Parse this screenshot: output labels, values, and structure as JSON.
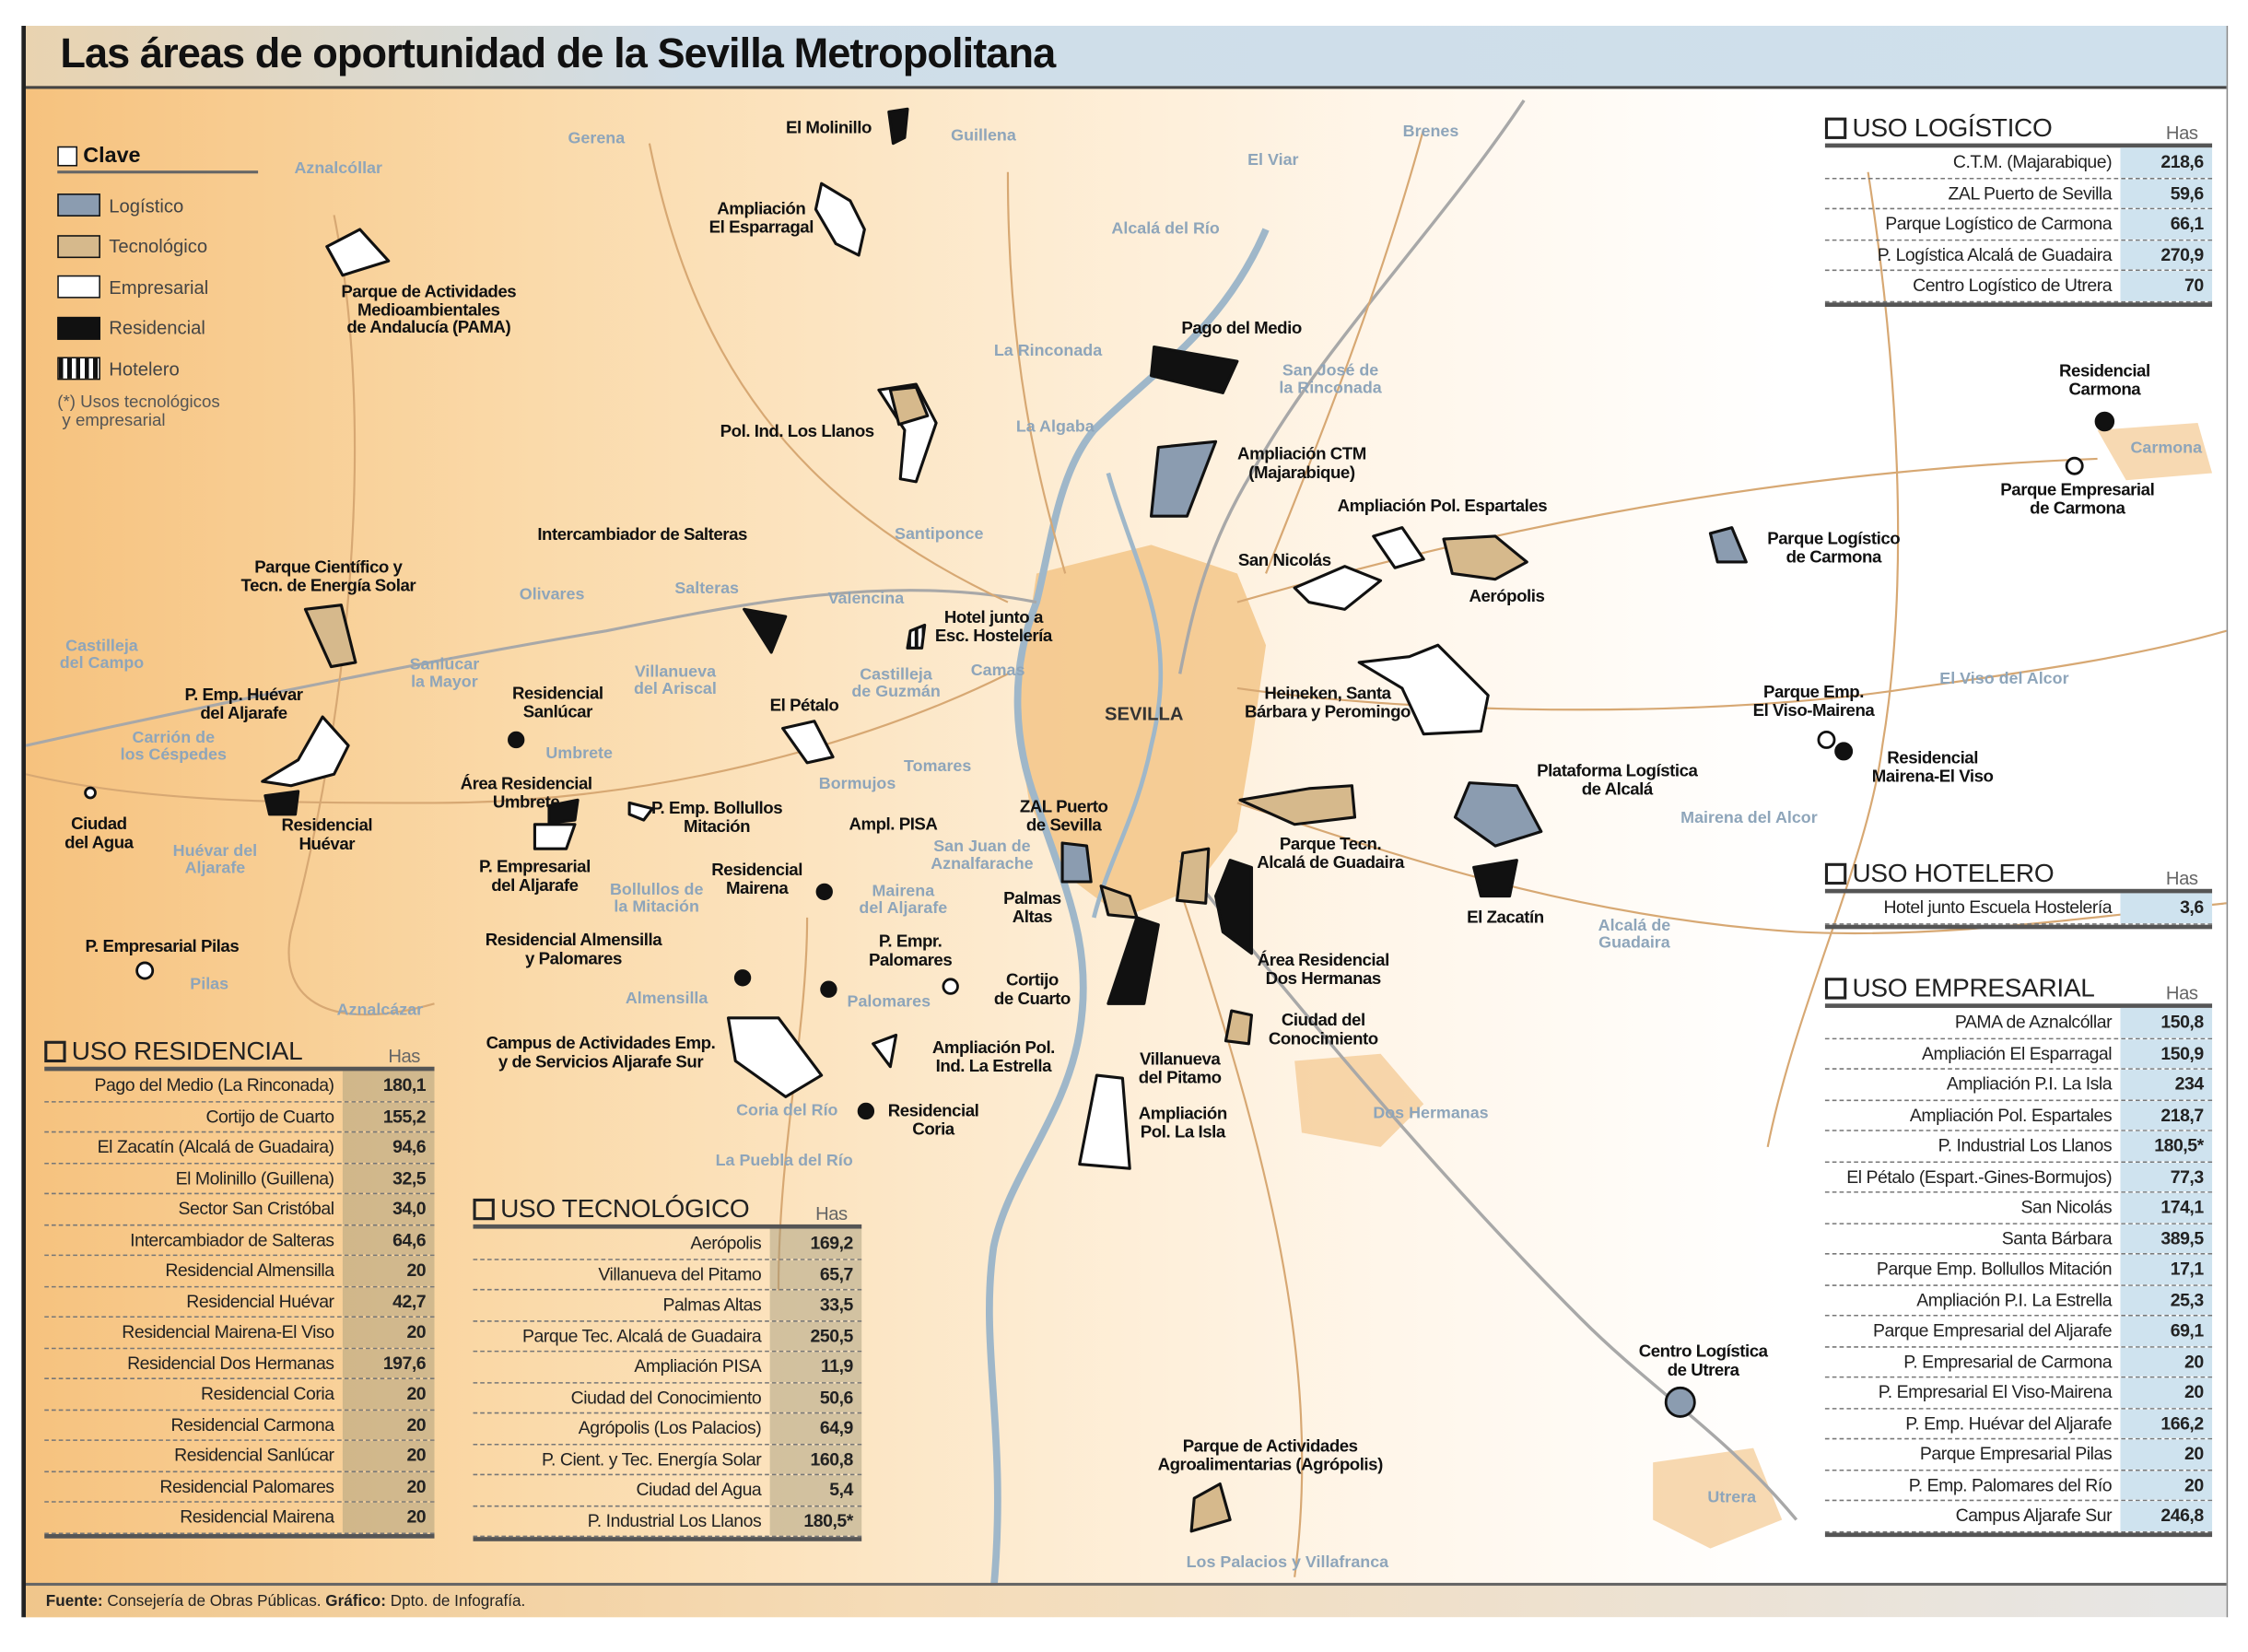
{
  "title": "Las áreas de oportunidad de la Sevilla Metropolitana",
  "footer": {
    "source_label": "Fuente:",
    "source": "Consejería de Obras Públicas.",
    "graphic_label": "Gráfico:",
    "graphic": "Dpto. de Infografía."
  },
  "colors": {
    "logistico": "#8b9cb0",
    "tecnologico": "#d6b98c",
    "empresarial": "#ffffff",
    "residencial": "#111111",
    "urban": "#f2c07e",
    "river": "#9fb7c9"
  },
  "legend": {
    "title": "Clave",
    "items": [
      {
        "label": "Logístico",
        "icon": "logistic-swatch"
      },
      {
        "label": "Tecnológico",
        "icon": "technology-swatch"
      },
      {
        "label": "Empresarial",
        "icon": "business-swatch"
      },
      {
        "label": "Residencial",
        "icon": "residential-swatch"
      },
      {
        "label": "Hotelero",
        "icon": "hotel-swatch-striped"
      }
    ],
    "note": "(*) Usos tecnológicos\n y empresarial"
  },
  "map": {
    "places": [
      "Gerena",
      "Aznalcóllar",
      "Guillena",
      "El Viar",
      "Brenes",
      "Alcalá del Río",
      "La Rinconada",
      "San José de\nla Rinconada",
      "La Algaba",
      "Carmona",
      "Santiponce",
      "Olivares",
      "Salteras",
      "Valencina",
      "Castilleja\ndel Campo",
      "Sanlúcar\nla Mayor",
      "Villanueva\ndel Ariscal",
      "Castilleja\nde Guzmán",
      "Camas",
      "Carrión de\nlos Céspedes",
      "Umbrete",
      "Tomares",
      "Bormujos",
      "Huévar del\nAljarafe",
      "San Juan de\nAznalfarache",
      "Mairena\ndel Aljarafe",
      "Bollullos de\nla Mitación",
      "Pilas",
      "Aznalcázar",
      "Almensilla",
      "Palomares",
      "Coria del Río",
      "La Puebla del Río",
      "Dos Hermanas",
      "El Viso del Alcor",
      "Mairena del Alcor",
      "Alcalá de\nGuadaira",
      "Utrera",
      "Los Palacios y Villafranca"
    ],
    "city": "SEVILLA",
    "sites": [
      "El Molinillo",
      "Ampliación\nEl Esparragal",
      "Parque de Actividades\nMedioambientales\nde Andalucía (PAMA)",
      "Pago del Medio",
      "Pol. Ind. Los Llanos",
      "Ampliación CTM\n(Majarabique)",
      "Ampliación Pol. Espartales",
      "Intercambiador de Salteras",
      "Parque Científico y\nTecn. de Energía Solar",
      "San Nicolás",
      "Aerópolis",
      "Hotel junto a\nEsc. Hostelería",
      "Parque Logístico\nde Carmona",
      "Residencial\nCarmona",
      "Parque Empresarial\nde Carmona",
      "P. Emp. Huévar\ndel Aljarafe",
      "Residencial\nSanlúcar",
      "El Pétalo",
      "Heineken, Santa\nBárbara y Peromingo",
      "Parque Emp.\nEl Viso-Mairena",
      "Residencial\nMairena-El Viso",
      "Plataforma Logística\nde Alcalá",
      "Área Residencial\nUmbrete",
      "P. Emp. Bollullos\nMitación",
      "Ampl. PISA",
      "ZAL Puerto\nde Sevilla",
      "Residencial\nHuévar",
      "Ciudad\ndel Agua",
      "Parque Tecn.\nAlcalá de Guadaira",
      "P. Empresarial\ndel Aljarafe",
      "Residencial\nMairena",
      "Palmas\nAltas",
      "El Zacatín",
      "P. Empresarial Pilas",
      "Residencial Almensilla\ny Palomares",
      "P. Empr.\nPalomares",
      "Área Residencial\nDos Hermanas",
      "Cortijo\nde Cuarto",
      "Ciudad del\nConocimiento",
      "Campus de Actividades Emp.\ny de Servicios Aljarafe Sur",
      "Ampliación Pol.\nInd. La Estrella",
      "Villanueva\ndel Pitamo",
      "Residencial\nCoria",
      "Ampliación\nPol. La Isla",
      "Centro Logística\nde Utrera",
      "Parque de Actividades\nAgroalimentarias (Agrópolis)"
    ]
  },
  "tables": {
    "logistico": {
      "title": "USO LOGÍSTICO",
      "unit": "Has",
      "rows": [
        {
          "name": "C.T.M. (Majarabique)",
          "value": "218,6"
        },
        {
          "name": "ZAL Puerto de Sevilla",
          "value": "59,6"
        },
        {
          "name": "Parque Logístico de Carmona",
          "value": "66,1"
        },
        {
          "name": "P. Logística Alcalá de Guadaira",
          "value": "270,9"
        },
        {
          "name": "Centro Logístico de Utrera",
          "value": "70"
        }
      ]
    },
    "hotelero": {
      "title": "USO HOTELERO",
      "unit": "Has",
      "rows": [
        {
          "name": "Hotel junto Escuela Hostelería",
          "value": "3,6"
        }
      ]
    },
    "empresarial": {
      "title": "USO EMPRESARIAL",
      "unit": "Has",
      "rows": [
        {
          "name": "PAMA  de Aznalcóllar",
          "value": "150,8"
        },
        {
          "name": "Ampliación El Esparragal",
          "value": "150,9"
        },
        {
          "name": "Ampliación P.I. La Isla",
          "value": "234"
        },
        {
          "name": "Ampliación Pol. Espartales",
          "value": "218,7"
        },
        {
          "name": "P. Industrial Los Llanos",
          "value": "180,5*"
        },
        {
          "name": "El Pétalo (Espart.-Gines-Bormujos)",
          "value": "77,3"
        },
        {
          "name": "San Nicolás",
          "value": "174,1"
        },
        {
          "name": "Santa Bárbara",
          "value": "389,5"
        },
        {
          "name": "Parque Emp. Bollullos Mitación",
          "value": "17,1"
        },
        {
          "name": "Ampliación P.I. La Estrella",
          "value": "25,3"
        },
        {
          "name": "Parque Empresarial del Aljarafe",
          "value": "69,1"
        },
        {
          "name": "P. Empresarial de Carmona",
          "value": "20"
        },
        {
          "name": "P. Empresarial El Viso-Mairena",
          "value": "20"
        },
        {
          "name": "P. Emp. Huévar del Aljarafe",
          "value": "166,2"
        },
        {
          "name": "Parque Empresarial Pilas",
          "value": "20"
        },
        {
          "name": "P. Emp. Palomares del Río",
          "value": "20"
        },
        {
          "name": "Campus Aljarafe Sur",
          "value": "246,8"
        }
      ]
    },
    "residencial": {
      "title": "USO RESIDENCIAL",
      "unit": "Has",
      "rows": [
        {
          "name": "Pago del Medio (La Rinconada)",
          "value": "180,1"
        },
        {
          "name": "Cortijo de Cuarto",
          "value": "155,2"
        },
        {
          "name": "El Zacatín (Alcalá de Guadaira)",
          "value": "94,6"
        },
        {
          "name": "El Molinillo (Guillena)",
          "value": "32,5"
        },
        {
          "name": "Sector San Cristóbal",
          "value": "34,0"
        },
        {
          "name": "Intercambiador de Salteras",
          "value": "64,6"
        },
        {
          "name": "Residencial Almensilla",
          "value": "20"
        },
        {
          "name": "Residencial Huévar",
          "value": "42,7"
        },
        {
          "name": "Residencial Mairena-El Viso",
          "value": "20"
        },
        {
          "name": "Residencial Dos Hermanas",
          "value": "197,6"
        },
        {
          "name": "Residencial Coria",
          "value": "20"
        },
        {
          "name": "Residencial Carmona",
          "value": "20"
        },
        {
          "name": "Residencial Sanlúcar",
          "value": "20"
        },
        {
          "name": "Residencial Palomares",
          "value": "20"
        },
        {
          "name": "Residencial Mairena",
          "value": "20"
        }
      ]
    },
    "tecnologico": {
      "title": "USO TECNOLÓGICO",
      "unit": "Has",
      "rows": [
        {
          "name": "Aerópolis",
          "value": "169,2"
        },
        {
          "name": "Villanueva del Pitamo",
          "value": "65,7"
        },
        {
          "name": "Palmas Altas",
          "value": "33,5"
        },
        {
          "name": "Parque Tec. Alcalá de Guadaira",
          "value": "250,5"
        },
        {
          "name": "Ampliación PISA",
          "value": "11,9"
        },
        {
          "name": "Ciudad del Conocimiento",
          "value": "50,6"
        },
        {
          "name": "Agrópolis (Los Palacios)",
          "value": "64,9"
        },
        {
          "name": "P. Cient. y Tec. Energía Solar",
          "value": "160,8"
        },
        {
          "name": "Ciudad del Agua",
          "value": "5,4"
        },
        {
          "name": "P. Industrial Los Llanos",
          "value": "180,5*"
        }
      ]
    }
  }
}
